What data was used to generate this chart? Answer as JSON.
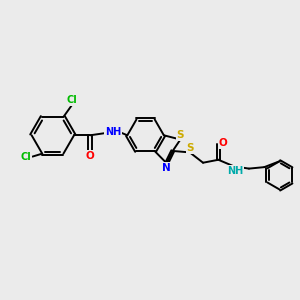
{
  "bg_color": "#ebebeb",
  "bond_color": "#000000",
  "atom_colors": {
    "Cl": "#00bb00",
    "O": "#ff0000",
    "N": "#0000ff",
    "S": "#ccaa00",
    "NH_right": "#00aaaa"
  },
  "figsize": [
    3.0,
    3.0
  ],
  "dpi": 100
}
